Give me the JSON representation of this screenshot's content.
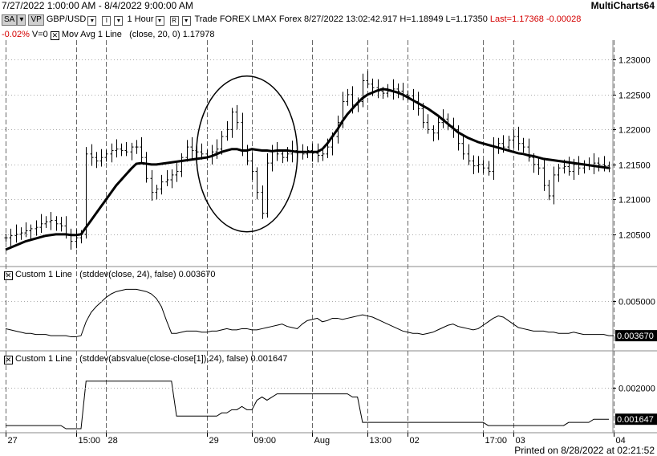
{
  "window": {
    "title_range": "7/27/2022 1:00:00 AM - 8/4/2022 9:00:00 AM",
    "app_name": "MultiCharts64",
    "printed": "Printed on 8/28/2022 at 02:21:52"
  },
  "toolbar": {
    "sa_label": "SA",
    "vp_label": "VP",
    "symbol": "GBP/USD",
    "interval_btn": "I",
    "interval": "1 Hour",
    "r_btn": "R",
    "data_type": "Trade",
    "source": "FOREX",
    "exchange": "LMAX",
    "category": "Forex",
    "datetime": "8/27/2022",
    "time": "13:02:42.917",
    "high": "H=1.18949",
    "low": "L=1.17350",
    "last": "Last=1.17368",
    "change": "-0.00028"
  },
  "status_line2": {
    "pct_change": "-0.02%",
    "volume": "V=0",
    "indicator": "Mov Avg 1 Line",
    "params": "(close, 20, 0)",
    "value": "1.17978"
  },
  "panel2": {
    "name": "Custom 1 Line",
    "formula": "(stddev(close, 24), false)",
    "value": "0.003670"
  },
  "panel3": {
    "name": "Custom 1 Line",
    "formula": "(stddev(absvalue(close-close[1]),24), false)",
    "value": "0.001647"
  },
  "colors": {
    "accent_red": "#d40000",
    "line": "#000000",
    "grid": "#888888"
  },
  "chart_data": [
    {
      "type": "ohlc",
      "title": "GBP/USD 1 Hour",
      "ylim": [
        1.2005,
        1.2328
      ],
      "yticks": [
        "1.20500",
        "1.21000",
        "1.21500",
        "1.22000",
        "1.22500",
        "1.23000"
      ],
      "x_ticks": [
        "27",
        "15:00",
        "28",
        "29",
        "09:00",
        "Aug",
        "13:00",
        "02",
        "17:00",
        "03",
        "04"
      ],
      "x_tick_bars": [
        0,
        14,
        20,
        40,
        49,
        61,
        72,
        80,
        95,
        101,
        121
      ],
      "series": [
        {
          "kind": "bars",
          "closes": [
            1.2045,
            1.2048,
            1.205,
            1.2052,
            1.2055,
            1.2058,
            1.206,
            1.2065,
            1.2068,
            1.207,
            1.2065,
            1.2062,
            1.205,
            1.204,
            1.2045,
            1.205,
            1.2165,
            1.216,
            1.2155,
            1.216,
            1.2165,
            1.217,
            1.2172,
            1.217,
            1.2168,
            1.2175,
            1.2175,
            1.216,
            1.213,
            1.211,
            1.2115,
            1.2125,
            1.2128,
            1.2135,
            1.214,
            1.216,
            1.2175,
            1.217,
            1.2168,
            1.2165,
            1.2162,
            1.2168,
            1.2172,
            1.219,
            1.22,
            1.2225,
            1.221,
            1.217,
            1.2155,
            1.214,
            1.211,
            1.208,
            1.2152,
            1.217,
            1.2165,
            1.216,
            1.2165,
            1.217,
            1.2167,
            1.2165,
            1.217,
            1.2166,
            1.2163,
            1.2165,
            1.2175,
            1.219,
            1.221,
            1.224,
            1.225,
            1.2235,
            1.224,
            1.227,
            1.2265,
            1.226,
            1.2255,
            1.2252,
            1.2255,
            1.2258,
            1.2255,
            1.225,
            1.2248,
            1.224,
            1.223,
            1.221,
            1.22,
            1.2195,
            1.221,
            1.2215,
            1.2205,
            1.22,
            1.218,
            1.2165,
            1.2155,
            1.2148,
            1.215,
            1.2145,
            1.214,
            1.2175,
            1.218,
            1.2175,
            1.2185,
            1.219,
            1.218,
            1.2175,
            1.216,
            1.215,
            1.2145,
            1.212,
            1.2105,
            1.2135,
            1.2145,
            1.2147,
            1.214,
            1.215,
            1.2145,
            1.215,
            1.2148,
            1.2152,
            1.215,
            1.2148,
            1.2145
          ]
        },
        {
          "kind": "line",
          "name": "Mov Avg 1 Line",
          "values": [
            1.2028,
            1.2031,
            1.2034,
            1.2037,
            1.204,
            1.2042,
            1.2044,
            1.2046,
            1.2048,
            1.2049,
            1.205,
            1.205,
            1.205,
            1.2049,
            1.2049,
            1.205,
            1.206,
            1.207,
            1.208,
            1.209,
            1.21,
            1.211,
            1.212,
            1.2128,
            1.2136,
            1.2144,
            1.2151,
            1.2152,
            1.2151,
            1.215,
            1.215,
            1.2151,
            1.2152,
            1.2153,
            1.2154,
            1.2155,
            1.2156,
            1.2157,
            1.2158,
            1.2159,
            1.216,
            1.2162,
            1.2165,
            1.2168,
            1.217,
            1.2172,
            1.2172,
            1.217,
            1.217,
            1.2172,
            1.2171,
            1.217,
            1.217,
            1.2169,
            1.217,
            1.217,
            1.217,
            1.2169,
            1.2168,
            1.2168,
            1.2168,
            1.2168,
            1.2168,
            1.2172,
            1.218,
            1.219,
            1.22,
            1.2212,
            1.2222,
            1.223,
            1.2238,
            1.2245,
            1.225,
            1.2253,
            1.2256,
            1.2258,
            1.2257,
            1.2255,
            1.2253,
            1.225,
            1.2246,
            1.2242,
            1.2238,
            1.2234,
            1.223,
            1.2225,
            1.222,
            1.2214,
            1.2208,
            1.2202,
            1.2196,
            1.2192,
            1.2188,
            1.2185,
            1.2182,
            1.218,
            1.2178,
            1.2176,
            1.2174,
            1.2172,
            1.217,
            1.2168,
            1.2166,
            1.2165,
            1.2163,
            1.2162,
            1.216,
            1.2158,
            1.2157,
            1.2156,
            1.2155,
            1.2154,
            1.2153,
            1.2152,
            1.2151,
            1.215,
            1.2149,
            1.2148,
            1.2147,
            1.2146,
            1.2145
          ]
        }
      ]
    },
    {
      "type": "line",
      "name": "Custom 1 Line stddev(close,24)",
      "ylim": [
        0.0009,
        0.0063
      ],
      "yticks": [
        "0.005000"
      ],
      "last_label": "0.003670",
      "values": [
        0.0026,
        0.0025,
        0.0024,
        0.0023,
        0.0022,
        0.0022,
        0.0021,
        0.0021,
        0.0021,
        0.002,
        0.002,
        0.002,
        0.002,
        0.0019,
        0.0019,
        0.002,
        0.0032,
        0.004,
        0.0045,
        0.0049,
        0.0053,
        0.0056,
        0.0058,
        0.0059,
        0.006,
        0.006,
        0.006,
        0.0059,
        0.0058,
        0.0056,
        0.0052,
        0.0045,
        0.0033,
        0.0022,
        0.0022,
        0.0023,
        0.0024,
        0.0024,
        0.0024,
        0.0023,
        0.0023,
        0.0024,
        0.0024,
        0.0025,
        0.0026,
        0.0025,
        0.0025,
        0.0026,
        0.0026,
        0.0025,
        0.0025,
        0.0026,
        0.0027,
        0.0028,
        0.0029,
        0.003,
        0.0028,
        0.0027,
        0.0026,
        0.003,
        0.0033,
        0.0034,
        0.0035,
        0.0032,
        0.0033,
        0.0035,
        0.0035,
        0.0034,
        0.0035,
        0.0036,
        0.0037,
        0.0038,
        0.0037,
        0.0036,
        0.0034,
        0.0032,
        0.003,
        0.0028,
        0.0026,
        0.0024,
        0.0023,
        0.0022,
        0.0022,
        0.0021,
        0.0022,
        0.0023,
        0.0025,
        0.0027,
        0.0029,
        0.003,
        0.0028,
        0.0027,
        0.0026,
        0.0025,
        0.0026,
        0.0029,
        0.0032,
        0.0035,
        0.0037,
        0.0036,
        0.0033,
        0.003,
        0.0027,
        0.0026,
        0.0025,
        0.0024,
        0.0024,
        0.0024,
        0.0023,
        0.0023,
        0.0022,
        0.0022,
        0.0022,
        0.0023,
        0.0022,
        0.0021,
        0.0021,
        0.0021,
        0.0021,
        0.0021,
        0.002,
        0.002
      ]
    },
    {
      "type": "line",
      "name": "Custom 1 Line stddev(absvalue)",
      "ylim": [
        0.0006,
        0.0027
      ],
      "yticks": [
        "0.002000"
      ],
      "last_label": "0.001647",
      "values": [
        0.0008,
        0.0008,
        0.0008,
        0.0008,
        0.0008,
        0.0008,
        0.0008,
        0.0008,
        0.0008,
        0.0008,
        0.0008,
        0.0008,
        0.0007,
        0.0007,
        0.0007,
        0.0007,
        0.0022,
        0.0022,
        0.0022,
        0.0022,
        0.0022,
        0.0022,
        0.0022,
        0.0022,
        0.0022,
        0.0022,
        0.0022,
        0.0022,
        0.0022,
        0.0022,
        0.0022,
        0.0022,
        0.0022,
        0.0022,
        0.0011,
        0.0011,
        0.0011,
        0.0011,
        0.0011,
        0.0011,
        0.0011,
        0.0011,
        0.0011,
        0.0012,
        0.0012,
        0.0013,
        0.0013,
        0.0014,
        0.0013,
        0.0013,
        0.0016,
        0.0017,
        0.0016,
        0.0017,
        0.0018,
        0.0018,
        0.0018,
        0.0018,
        0.0018,
        0.0018,
        0.0018,
        0.0018,
        0.0018,
        0.0018,
        0.0018,
        0.0018,
        0.0018,
        0.0018,
        0.0018,
        0.0017,
        0.0017,
        0.0009,
        0.0009,
        0.0009,
        0.0009,
        0.0009,
        0.0009,
        0.0009,
        0.0009,
        0.0009,
        0.0009,
        0.0009,
        0.0009,
        0.0009,
        0.0009,
        0.0009,
        0.0009,
        0.0009,
        0.0009,
        0.0009,
        0.0009,
        0.0009,
        0.0009,
        0.0009,
        0.0009,
        0.0009,
        0.0008,
        0.0008,
        0.0008,
        0.0008,
        0.0008,
        0.0008,
        0.0008,
        0.0008,
        0.0008,
        0.0008,
        0.0008,
        0.0008,
        0.0008,
        0.0008,
        0.0008,
        0.0008,
        0.0009,
        0.0009,
        0.0009,
        0.0009,
        0.0009,
        0.001,
        0.001,
        0.001,
        0.001
      ]
    }
  ]
}
